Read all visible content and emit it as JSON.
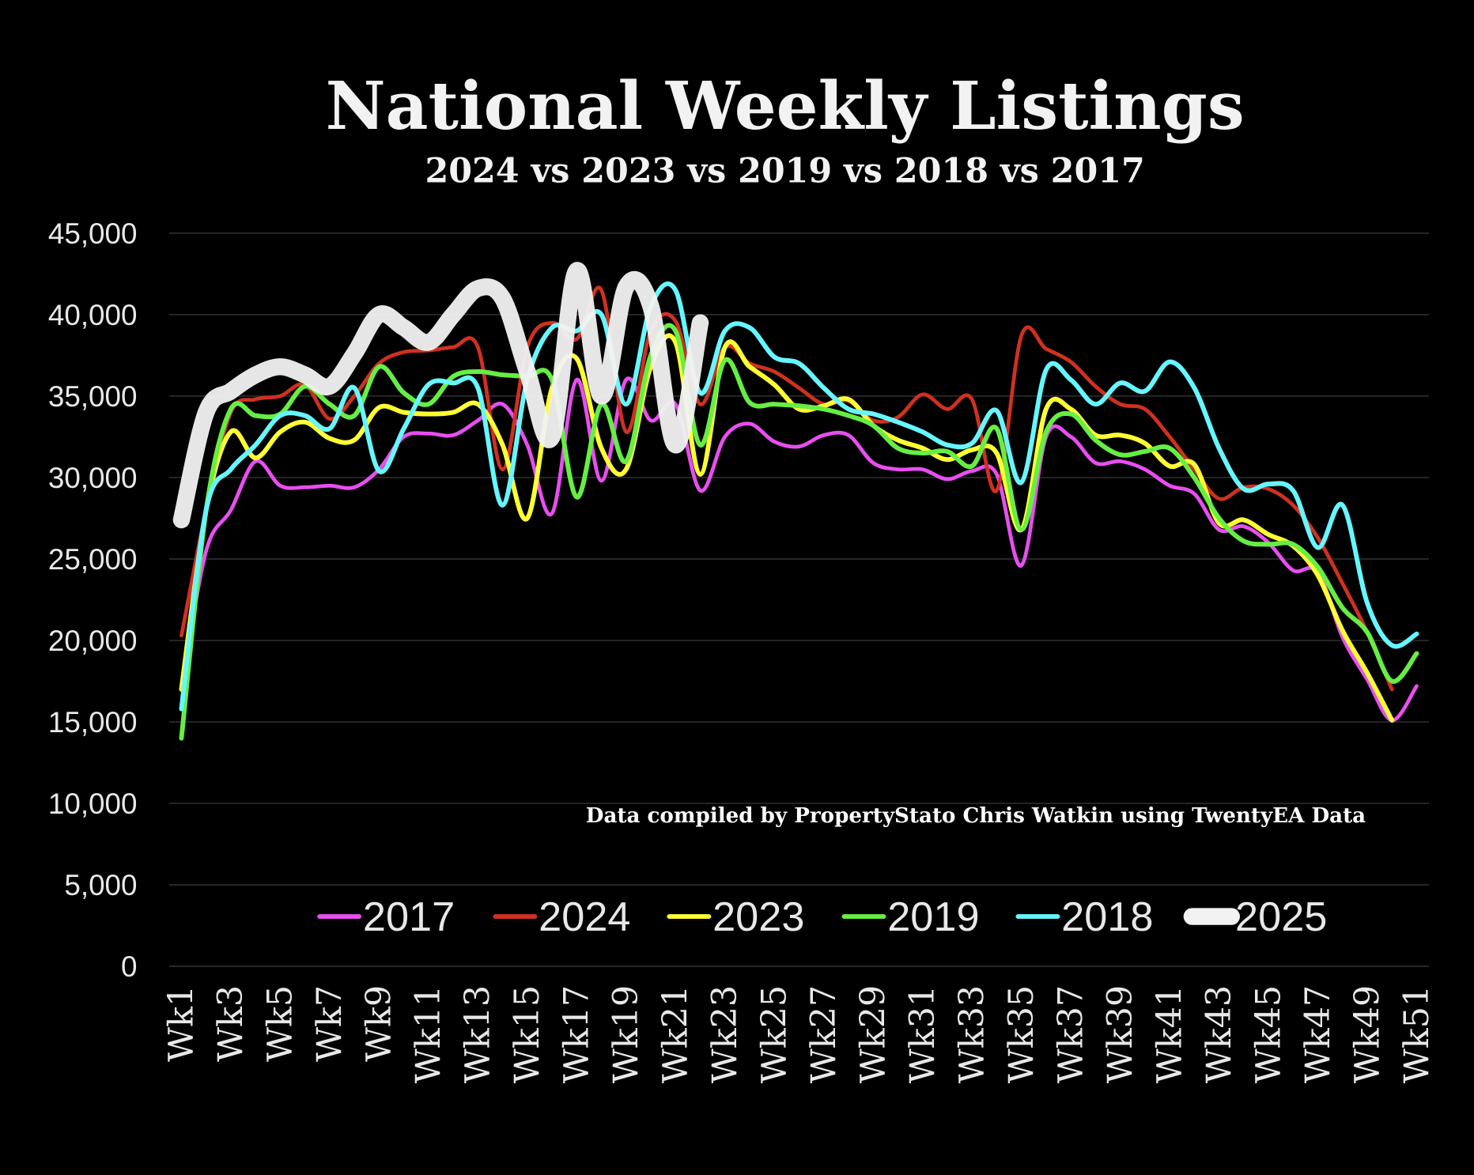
{
  "chart_data": {
    "type": "line",
    "title": "National Weekly Listings",
    "subtitle": "2024 vs 2023 vs 2019 vs 2018 vs 2017",
    "annotation": "Data compiled by PropertyStato Chris Watkin using TwentyEA Data",
    "xlabel": "",
    "ylabel": "",
    "ylim": [
      0,
      45000
    ],
    "yticks": [
      "0",
      "5,000",
      "10,000",
      "15,000",
      "20,000",
      "25,000",
      "30,000",
      "35,000",
      "40,000",
      "45,000"
    ],
    "xtick_labels": [
      "Wk1",
      "Wk3",
      "Wk5",
      "Wk7",
      "Wk9",
      "Wk11",
      "Wk13",
      "Wk15",
      "Wk17",
      "Wk19",
      "Wk21",
      "Wk23",
      "Wk25",
      "Wk27",
      "Wk29",
      "Wk31",
      "Wk33",
      "Wk35",
      "Wk37",
      "Wk39",
      "Wk41",
      "Wk43",
      "Wk45",
      "Wk47",
      "Wk49",
      "Wk51"
    ],
    "x_range_weeks": [
      1,
      51
    ],
    "grid": true,
    "legend_placement": "bottom-center",
    "series": [
      {
        "name": "2017",
        "color": "#e84ef0",
        "width": 4,
        "values": [
          17000,
          25500,
          28000,
          31000,
          29500,
          29400,
          29500,
          29400,
          30500,
          32500,
          32700,
          32600,
          33500,
          34500,
          32000,
          27800,
          36000,
          29800,
          36000,
          33500,
          34500,
          29200,
          32500,
          33300,
          32200,
          31900,
          32600,
          32600,
          30900,
          30500,
          30500,
          29900,
          30400,
          30200,
          24600,
          32500,
          32500,
          30900,
          31000,
          30500,
          29500,
          29000,
          26800,
          27000,
          26000,
          24300,
          24200,
          20200,
          17600,
          15100,
          17200
        ]
      },
      {
        "name": "2024",
        "color": "#d03020",
        "width": 4,
        "values": [
          20300,
          28000,
          34000,
          34800,
          35000,
          35700,
          33600,
          35000,
          37000,
          37700,
          37800,
          38000,
          38000,
          30500,
          38000,
          39500,
          38500,
          41500,
          32800,
          39000,
          39600,
          34500,
          38000,
          37000,
          36500,
          35500,
          34500,
          34700,
          33500,
          33700,
          35100,
          34200,
          34800,
          29200,
          38700,
          37900,
          37100,
          35600,
          34500,
          34200,
          32500,
          30500,
          28700,
          29400,
          29300,
          28300,
          26300,
          23500,
          20500,
          17000
        ]
      },
      {
        "name": "2023",
        "color": "#ffff33",
        "width": 5,
        "values": [
          17000,
          28000,
          32800,
          31200,
          32800,
          33400,
          32400,
          32300,
          34300,
          34000,
          33900,
          34000,
          34500,
          32000,
          27500,
          35500,
          37300,
          31800,
          30500,
          36800,
          38300,
          30200,
          38000,
          36800,
          35700,
          34200,
          34400,
          34800,
          33200,
          32300,
          31800,
          31100,
          31700,
          31500,
          26800,
          34200,
          34200,
          32600,
          32600,
          32100,
          30700,
          30800,
          27200,
          27400,
          26500,
          25800,
          24000,
          20600,
          18000,
          15100
        ]
      },
      {
        "name": "2019",
        "color": "#66ee44",
        "width": 5,
        "values": [
          14000,
          28000,
          34200,
          33800,
          33900,
          35600,
          34500,
          33800,
          36800,
          35200,
          34500,
          36200,
          36500,
          36300,
          36200,
          36000,
          28800,
          34500,
          31000,
          37500,
          39000,
          32000,
          37200,
          34600,
          34500,
          34400,
          34200,
          33800,
          33200,
          31800,
          31500,
          31600,
          30700,
          33000,
          26800,
          32800,
          33900,
          32300,
          31400,
          31600,
          31800,
          30000,
          27500,
          26100,
          25900,
          25900,
          24500,
          22000,
          20500,
          17500,
          19200
        ]
      },
      {
        "name": "2018",
        "color": "#66f6ff",
        "width": 5,
        "values": [
          15800,
          28000,
          30500,
          32000,
          33800,
          33800,
          33000,
          35500,
          30400,
          33000,
          35700,
          35800,
          35500,
          28300,
          36000,
          39200,
          39000,
          40000,
          34500,
          40500,
          41500,
          35200,
          39000,
          39200,
          37400,
          37000,
          35500,
          34200,
          33900,
          33400,
          32800,
          32000,
          32100,
          34100,
          29700,
          36600,
          36000,
          34500,
          35800,
          35300,
          37100,
          35500,
          31800,
          29300,
          29600,
          29200,
          25700,
          28300,
          22300,
          19700,
          20400
        ]
      },
      {
        "name": "2025",
        "color": "#f2f2f2",
        "width": 18,
        "values": [
          27400,
          34000,
          35300,
          36300,
          36800,
          36300,
          35600,
          37600,
          40000,
          39200,
          38300,
          40000,
          41600,
          41000,
          36500,
          32500,
          42700,
          35000,
          41700,
          40500,
          32000,
          39500
        ]
      }
    ]
  }
}
